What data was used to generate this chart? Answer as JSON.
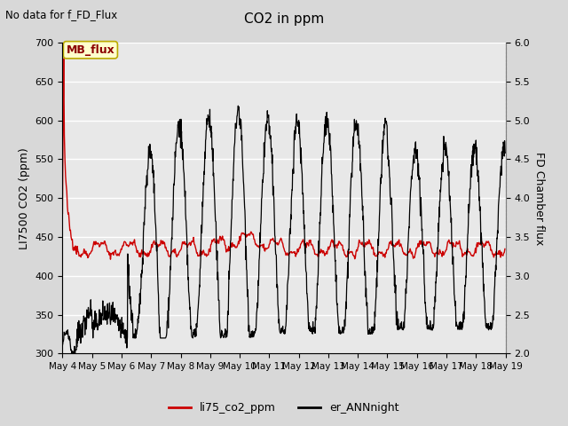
{
  "title": "CO2 in ppm",
  "top_left_text": "No data for f_FD_Flux",
  "ylabel_left": "LI7500 CO2 (ppm)",
  "ylabel_right": "FD Chamber flux",
  "ylim_left": [
    300,
    700
  ],
  "ylim_right": [
    2.0,
    6.0
  ],
  "yticks_left": [
    300,
    350,
    400,
    450,
    500,
    550,
    600,
    650,
    700
  ],
  "yticks_right": [
    2.0,
    2.5,
    3.0,
    3.5,
    4.0,
    4.5,
    5.0,
    5.5,
    6.0
  ],
  "fig_bg_color": "#d8d8d8",
  "plot_bg_color": "#e8e8e8",
  "legend_labels": [
    "li75_co2_ppm",
    "er_ANNnight"
  ],
  "legend_colors": [
    "#cc0000",
    "#000000"
  ],
  "mb_flux_label": "MB_flux",
  "mb_flux_bg": "#ffffcc",
  "mb_flux_border": "#bbaa00"
}
